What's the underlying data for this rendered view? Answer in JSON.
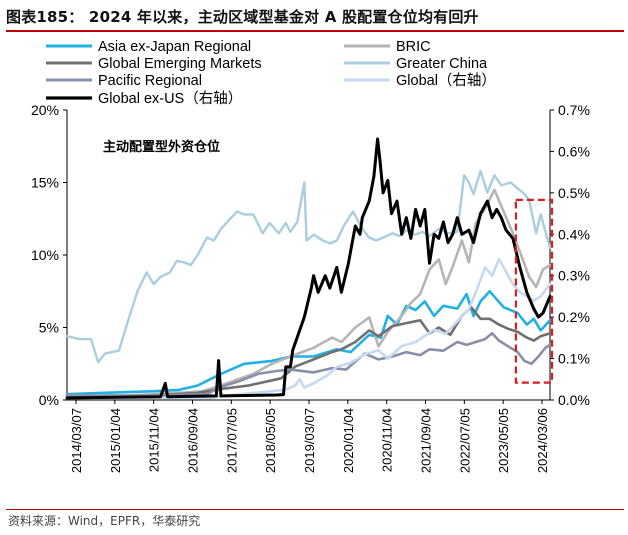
{
  "title": "图表185：  2024 年以来，主动区域型基金对 A 股配置仓位均有回升",
  "source": "资料来源：Wind，EPFR，华泰研究",
  "chart_data": {
    "type": "line",
    "annotation": "主动配置型外资仓位",
    "left_axis": {
      "min": 0,
      "max": 20,
      "ticks": [
        "0%",
        "5%",
        "10%",
        "15%",
        "20%"
      ]
    },
    "right_axis": {
      "min": 0,
      "max": 0.7,
      "ticks": [
        "0.0%",
        "0.1%",
        "0.2%",
        "0.3%",
        "0.4%",
        "0.5%",
        "0.6%",
        "0.7%"
      ]
    },
    "x_ticks": [
      "2014/03/07",
      "2015/01/04",
      "2015/11/04",
      "2016/09/04",
      "2017/07/05",
      "2018/05/05",
      "2019/03/07",
      "2020/01/04",
      "2020/11/04",
      "2021/09/04",
      "2022/07/05",
      "2023/05/05",
      "2024/03/06"
    ],
    "x_domain": [
      2014.18,
      2024.6
    ],
    "series": [
      {
        "name": "Asia ex-Japan Regional",
        "axis": "left",
        "color": "#1fb0e6",
        "width": 2.6,
        "points": [
          [
            2014.18,
            0.4
          ],
          [
            2015.0,
            0.5
          ],
          [
            2016.0,
            0.6
          ],
          [
            2016.6,
            0.7
          ],
          [
            2017.0,
            1.0
          ],
          [
            2017.5,
            1.8
          ],
          [
            2018.0,
            2.5
          ],
          [
            2018.6,
            2.7
          ],
          [
            2019.0,
            3.0
          ],
          [
            2019.5,
            3.0
          ],
          [
            2020.0,
            3.5
          ],
          [
            2020.3,
            3.3
          ],
          [
            2020.7,
            4.5
          ],
          [
            2020.95,
            4.3
          ],
          [
            2021.1,
            5.8
          ],
          [
            2021.3,
            5.2
          ],
          [
            2021.5,
            6.5
          ],
          [
            2021.7,
            6.2
          ],
          [
            2021.9,
            6.8
          ],
          [
            2022.1,
            5.8
          ],
          [
            2022.3,
            6.5
          ],
          [
            2022.6,
            6.3
          ],
          [
            2022.8,
            7.3
          ],
          [
            2022.95,
            5.8
          ],
          [
            2023.1,
            6.8
          ],
          [
            2023.3,
            7.5
          ],
          [
            2023.6,
            6.4
          ],
          [
            2023.9,
            6.0
          ],
          [
            2024.1,
            5.2
          ],
          [
            2024.25,
            5.6
          ],
          [
            2024.4,
            4.8
          ],
          [
            2024.6,
            5.5
          ]
        ]
      },
      {
        "name": "BRIC",
        "axis": "left",
        "color": "#b5b5b5",
        "width": 2.6,
        "points": [
          [
            2014.18,
            0.3
          ],
          [
            2015.5,
            0.3
          ],
          [
            2016.6,
            0.5
          ],
          [
            2017.1,
            0.6
          ],
          [
            2017.5,
            1.0
          ],
          [
            2018.2,
            1.8
          ],
          [
            2018.6,
            2.5
          ],
          [
            2019.0,
            3.0
          ],
          [
            2019.5,
            3.6
          ],
          [
            2019.9,
            4.3
          ],
          [
            2020.1,
            4.0
          ],
          [
            2020.4,
            5.0
          ],
          [
            2020.7,
            5.7
          ],
          [
            2020.9,
            3.7
          ],
          [
            2021.1,
            4.7
          ],
          [
            2021.4,
            5.8
          ],
          [
            2021.6,
            6.7
          ],
          [
            2021.8,
            7.3
          ],
          [
            2022.0,
            9.0
          ],
          [
            2022.2,
            9.7
          ],
          [
            2022.35,
            8.0
          ],
          [
            2022.5,
            9.2
          ],
          [
            2022.7,
            11.0
          ],
          [
            2022.85,
            9.5
          ],
          [
            2023.0,
            12.2
          ],
          [
            2023.2,
            13.2
          ],
          [
            2023.4,
            14.5
          ],
          [
            2023.6,
            13.0
          ],
          [
            2023.8,
            11.5
          ],
          [
            2024.0,
            9.8
          ],
          [
            2024.15,
            8.5
          ],
          [
            2024.3,
            7.8
          ],
          [
            2024.45,
            9.0
          ],
          [
            2024.6,
            9.3
          ]
        ]
      },
      {
        "name": "Global Emerging Markets",
        "axis": "left",
        "color": "#707070",
        "width": 2.6,
        "points": [
          [
            2014.18,
            0.2
          ],
          [
            2016.0,
            0.3
          ],
          [
            2017.0,
            0.5
          ],
          [
            2017.6,
            0.8
          ],
          [
            2018.1,
            1.0
          ],
          [
            2018.8,
            1.5
          ],
          [
            2019.1,
            2.3
          ],
          [
            2019.5,
            2.8
          ],
          [
            2019.9,
            3.3
          ],
          [
            2020.1,
            3.5
          ],
          [
            2020.4,
            4.0
          ],
          [
            2020.7,
            4.8
          ],
          [
            2020.9,
            4.4
          ],
          [
            2021.2,
            5.1
          ],
          [
            2021.5,
            5.3
          ],
          [
            2021.8,
            5.5
          ],
          [
            2022.0,
            4.6
          ],
          [
            2022.2,
            5.0
          ],
          [
            2022.45,
            4.5
          ],
          [
            2022.7,
            5.8
          ],
          [
            2022.9,
            6.4
          ],
          [
            2023.1,
            5.6
          ],
          [
            2023.3,
            5.6
          ],
          [
            2023.5,
            5.2
          ],
          [
            2023.7,
            4.9
          ],
          [
            2023.9,
            4.7
          ],
          [
            2024.1,
            4.3
          ],
          [
            2024.25,
            4.1
          ],
          [
            2024.4,
            4.4
          ],
          [
            2024.6,
            4.6
          ]
        ]
      },
      {
        "name": "Greater China",
        "axis": "left",
        "color": "#a9cedd",
        "width": 2.4,
        "points": [
          [
            2014.18,
            4.4
          ],
          [
            2014.45,
            4.2
          ],
          [
            2014.7,
            4.2
          ],
          [
            2014.85,
            2.6
          ],
          [
            2015.0,
            3.2
          ],
          [
            2015.3,
            3.4
          ],
          [
            2015.5,
            5.5
          ],
          [
            2015.7,
            7.5
          ],
          [
            2015.9,
            8.8
          ],
          [
            2016.05,
            8.0
          ],
          [
            2016.2,
            8.5
          ],
          [
            2016.4,
            8.8
          ],
          [
            2016.55,
            9.6
          ],
          [
            2016.7,
            9.5
          ],
          [
            2016.85,
            9.3
          ],
          [
            2017.0,
            10.0
          ],
          [
            2017.2,
            11.2
          ],
          [
            2017.35,
            11.0
          ],
          [
            2017.5,
            11.8
          ],
          [
            2017.7,
            12.5
          ],
          [
            2017.85,
            13.0
          ],
          [
            2018.0,
            12.8
          ],
          [
            2018.2,
            12.8
          ],
          [
            2018.4,
            11.5
          ],
          [
            2018.55,
            12.2
          ],
          [
            2018.75,
            11.5
          ],
          [
            2018.9,
            12.2
          ],
          [
            2019.0,
            11.6
          ],
          [
            2019.15,
            12.3
          ],
          [
            2019.3,
            15.0
          ],
          [
            2019.35,
            11.0
          ],
          [
            2019.5,
            11.4
          ],
          [
            2019.7,
            11.0
          ],
          [
            2019.85,
            10.8
          ],
          [
            2020.0,
            11.0
          ],
          [
            2020.15,
            12.0
          ],
          [
            2020.35,
            13.0
          ],
          [
            2020.55,
            11.8
          ],
          [
            2020.7,
            11.2
          ],
          [
            2020.85,
            11.0
          ],
          [
            2021.0,
            11.2
          ],
          [
            2021.2,
            11.5
          ],
          [
            2021.35,
            11.3
          ],
          [
            2021.5,
            11.7
          ],
          [
            2021.7,
            11.4
          ],
          [
            2021.85,
            11.6
          ],
          [
            2022.0,
            11.3
          ],
          [
            2022.2,
            11.8
          ],
          [
            2022.4,
            11.5
          ],
          [
            2022.6,
            11.6
          ],
          [
            2022.75,
            15.5
          ],
          [
            2022.85,
            15.0
          ],
          [
            2022.95,
            14.2
          ],
          [
            2023.1,
            15.8
          ],
          [
            2023.25,
            14.3
          ],
          [
            2023.4,
            15.5
          ],
          [
            2023.55,
            14.8
          ],
          [
            2023.75,
            15.0
          ],
          [
            2023.9,
            14.6
          ],
          [
            2024.05,
            14.2
          ],
          [
            2024.15,
            13.8
          ],
          [
            2024.3,
            11.5
          ],
          [
            2024.4,
            12.8
          ],
          [
            2024.6,
            10.5
          ]
        ]
      },
      {
        "name": "Pacific Regional",
        "axis": "left",
        "color": "#8a8fa8",
        "width": 2.6,
        "points": [
          [
            2014.18,
            0.3
          ],
          [
            2016.0,
            0.3
          ],
          [
            2017.2,
            0.4
          ],
          [
            2017.5,
            0.9
          ],
          [
            2017.9,
            1.3
          ],
          [
            2018.3,
            1.8
          ],
          [
            2018.7,
            2.0
          ],
          [
            2019.0,
            2.1
          ],
          [
            2019.5,
            1.9
          ],
          [
            2019.9,
            2.2
          ],
          [
            2020.2,
            2.1
          ],
          [
            2020.6,
            3.2
          ],
          [
            2020.9,
            2.8
          ],
          [
            2021.2,
            3.0
          ],
          [
            2021.5,
            3.3
          ],
          [
            2021.8,
            3.1
          ],
          [
            2022.0,
            3.5
          ],
          [
            2022.3,
            3.4
          ],
          [
            2022.6,
            4.0
          ],
          [
            2022.8,
            3.8
          ],
          [
            2023.0,
            4.0
          ],
          [
            2023.2,
            4.2
          ],
          [
            2023.35,
            4.6
          ],
          [
            2023.5,
            4.1
          ],
          [
            2023.7,
            3.7
          ],
          [
            2023.9,
            3.3
          ],
          [
            2024.05,
            2.7
          ],
          [
            2024.2,
            2.5
          ],
          [
            2024.35,
            3.0
          ],
          [
            2024.5,
            3.6
          ],
          [
            2024.6,
            3.8
          ]
        ]
      },
      {
        "name": "Global（右轴）",
        "axis": "right",
        "color": "#c6d9ef",
        "width": 2.6,
        "points": [
          [
            2014.18,
            0.005
          ],
          [
            2017.3,
            0.005
          ],
          [
            2017.6,
            0.01
          ],
          [
            2018.0,
            0.015
          ],
          [
            2018.5,
            0.02
          ],
          [
            2018.9,
            0.025
          ],
          [
            2019.1,
            0.035
          ],
          [
            2019.2,
            0.05
          ],
          [
            2019.3,
            0.03
          ],
          [
            2019.5,
            0.04
          ],
          [
            2019.8,
            0.06
          ],
          [
            2020.0,
            0.08
          ],
          [
            2020.3,
            0.09
          ],
          [
            2020.6,
            0.11
          ],
          [
            2020.9,
            0.12
          ],
          [
            2021.1,
            0.1
          ],
          [
            2021.4,
            0.13
          ],
          [
            2021.7,
            0.14
          ],
          [
            2021.9,
            0.155
          ],
          [
            2022.1,
            0.17
          ],
          [
            2022.35,
            0.16
          ],
          [
            2022.6,
            0.19
          ],
          [
            2022.85,
            0.22
          ],
          [
            2023.0,
            0.26
          ],
          [
            2023.2,
            0.32
          ],
          [
            2023.35,
            0.3
          ],
          [
            2023.5,
            0.34
          ],
          [
            2023.65,
            0.31
          ],
          [
            2023.8,
            0.28
          ],
          [
            2023.95,
            0.26
          ],
          [
            2024.1,
            0.25
          ],
          [
            2024.25,
            0.24
          ],
          [
            2024.4,
            0.25
          ],
          [
            2024.6,
            0.28
          ]
        ]
      },
      {
        "name": "Global ex-US（右轴）",
        "axis": "right",
        "color": "#000000",
        "width": 3,
        "points": [
          [
            2014.18,
            0.005
          ],
          [
            2016.2,
            0.008
          ],
          [
            2016.3,
            0.04
          ],
          [
            2016.35,
            0.008
          ],
          [
            2017.4,
            0.01
          ],
          [
            2017.45,
            0.095
          ],
          [
            2017.5,
            0.01
          ],
          [
            2018.7,
            0.012
          ],
          [
            2018.85,
            0.013
          ],
          [
            2018.9,
            0.08
          ],
          [
            2019.0,
            0.08
          ],
          [
            2019.05,
            0.12
          ],
          [
            2019.3,
            0.2
          ],
          [
            2019.45,
            0.27
          ],
          [
            2019.5,
            0.3
          ],
          [
            2019.6,
            0.26
          ],
          [
            2019.75,
            0.3
          ],
          [
            2019.85,
            0.27
          ],
          [
            2020.0,
            0.32
          ],
          [
            2020.1,
            0.26
          ],
          [
            2020.25,
            0.33
          ],
          [
            2020.4,
            0.42
          ],
          [
            2020.5,
            0.4
          ],
          [
            2020.55,
            0.44
          ],
          [
            2020.7,
            0.48
          ],
          [
            2020.8,
            0.54
          ],
          [
            2020.88,
            0.63
          ],
          [
            2020.93,
            0.58
          ],
          [
            2021.0,
            0.5
          ],
          [
            2021.1,
            0.53
          ],
          [
            2021.18,
            0.45
          ],
          [
            2021.3,
            0.48
          ],
          [
            2021.4,
            0.4
          ],
          [
            2021.5,
            0.44
          ],
          [
            2021.6,
            0.39
          ],
          [
            2021.7,
            0.46
          ],
          [
            2021.8,
            0.42
          ],
          [
            2021.9,
            0.46
          ],
          [
            2022.0,
            0.33
          ],
          [
            2022.1,
            0.4
          ],
          [
            2022.2,
            0.39
          ],
          [
            2022.3,
            0.43
          ],
          [
            2022.4,
            0.38
          ],
          [
            2022.5,
            0.4
          ],
          [
            2022.6,
            0.44
          ],
          [
            2022.7,
            0.4
          ],
          [
            2022.85,
            0.41
          ],
          [
            2022.95,
            0.38
          ],
          [
            2023.1,
            0.45
          ],
          [
            2023.25,
            0.48
          ],
          [
            2023.35,
            0.44
          ],
          [
            2023.45,
            0.46
          ],
          [
            2023.55,
            0.44
          ],
          [
            2023.65,
            0.41
          ],
          [
            2023.8,
            0.39
          ],
          [
            2023.95,
            0.32
          ],
          [
            2024.1,
            0.26
          ],
          [
            2024.25,
            0.22
          ],
          [
            2024.35,
            0.2
          ],
          [
            2024.45,
            0.21
          ],
          [
            2024.6,
            0.25
          ]
        ]
      }
    ],
    "highlight_box": {
      "x0": 2023.95,
      "x1": 2024.6,
      "y0_left": 1.2,
      "y1_left": 13.8
    }
  }
}
